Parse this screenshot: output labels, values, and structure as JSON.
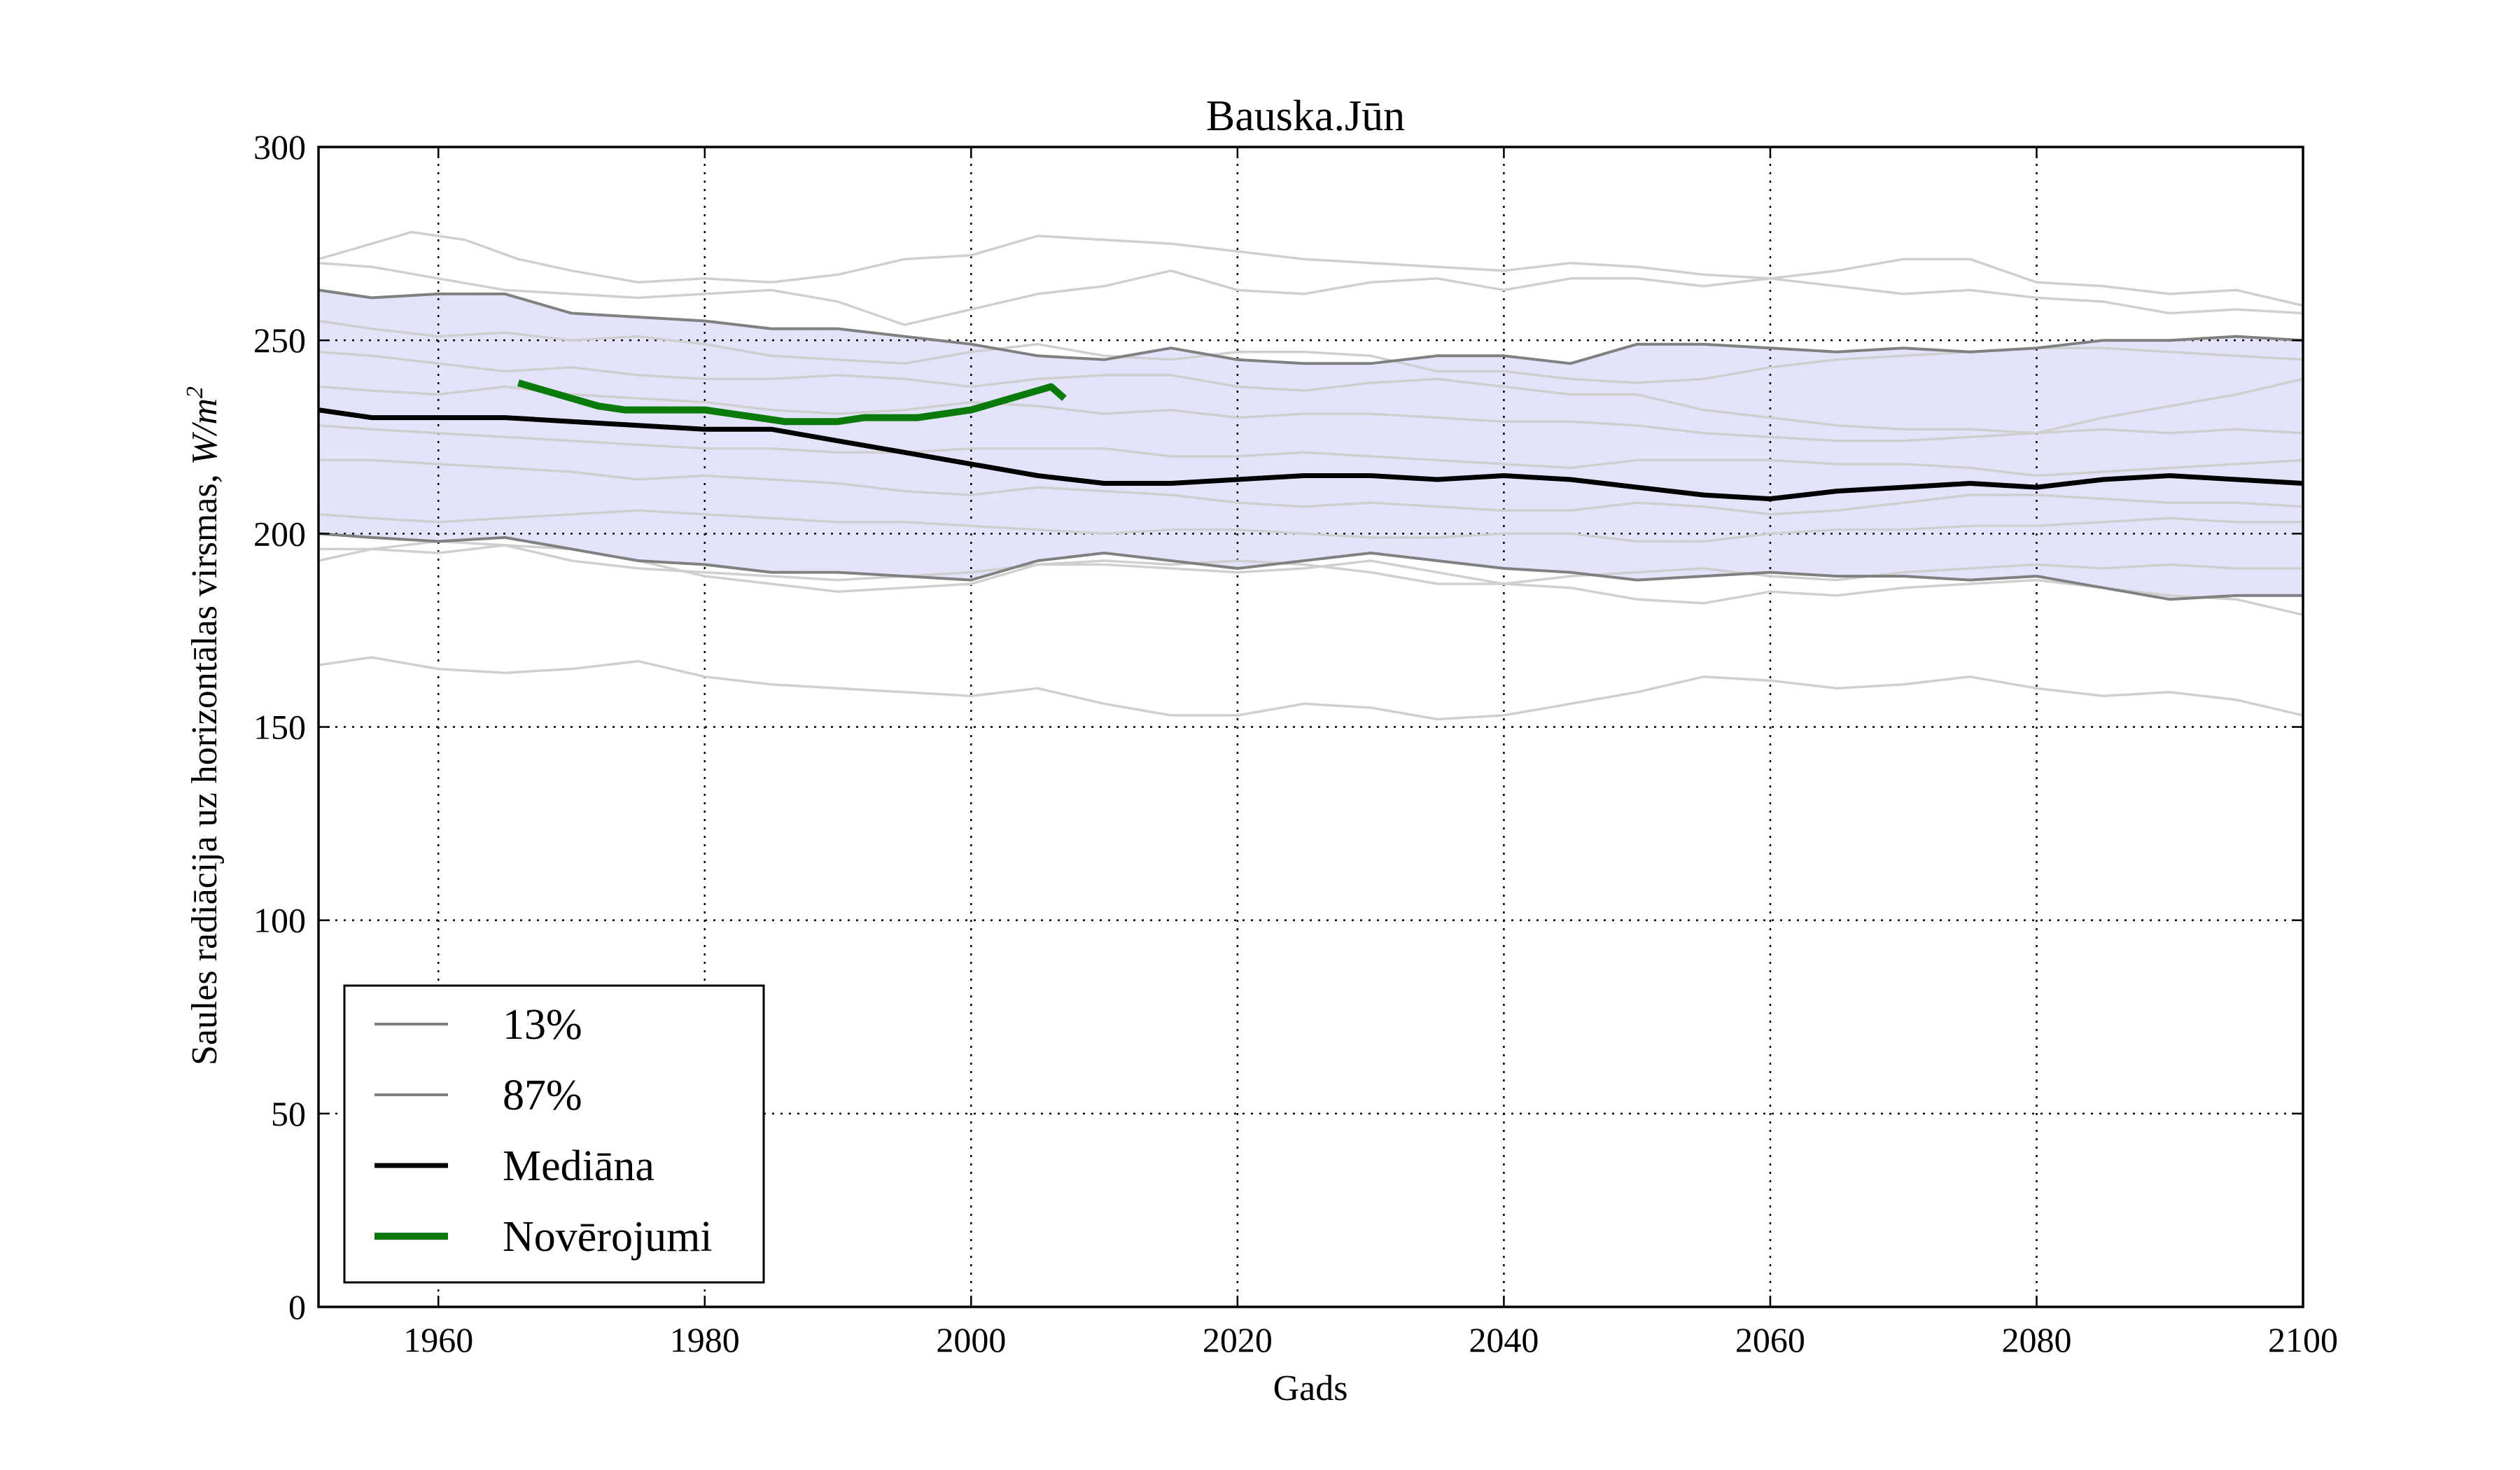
{
  "chart_data": {
    "type": "line",
    "title": "Bauska.Jūn",
    "xlabel": "Gads",
    "ylabel_text": "Saules radiācija uz horizontālas virsmas, ",
    "ylabel_unit": "W/m",
    "ylabel_unit_exp": "2",
    "xlim": [
      1951,
      2100
    ],
    "ylim": [
      0,
      300
    ],
    "xticks": [
      1960,
      1980,
      2000,
      2020,
      2040,
      2060,
      2080,
      2100
    ],
    "yticks": [
      0,
      50,
      100,
      150,
      200,
      250,
      300
    ],
    "grid": true,
    "legend_position": "lower-left",
    "band_color": "#e3e3fb",
    "series": [
      {
        "name": "13%",
        "color": "#808080",
        "x": [
          1951,
          1955,
          1960,
          1965,
          1970,
          1975,
          1980,
          1985,
          1990,
          1995,
          2000,
          2005,
          2010,
          2015,
          2020,
          2025,
          2030,
          2035,
          2040,
          2045,
          2050,
          2055,
          2060,
          2065,
          2070,
          2075,
          2080,
          2085,
          2090,
          2095,
          2100
        ],
        "values": [
          200,
          199,
          198,
          199,
          196,
          193,
          192,
          190,
          190,
          189,
          188,
          193,
          195,
          193,
          191,
          193,
          195,
          193,
          191,
          190,
          188,
          189,
          190,
          189,
          189,
          188,
          189,
          186,
          183,
          184,
          184
        ]
      },
      {
        "name": "87%",
        "color": "#808080",
        "x": [
          1951,
          1955,
          1960,
          1965,
          1970,
          1975,
          1980,
          1985,
          1990,
          1995,
          2000,
          2005,
          2010,
          2015,
          2020,
          2025,
          2030,
          2035,
          2040,
          2045,
          2050,
          2055,
          2060,
          2065,
          2070,
          2075,
          2080,
          2085,
          2090,
          2095,
          2100
        ],
        "values": [
          263,
          261,
          262,
          262,
          257,
          256,
          255,
          253,
          253,
          251,
          249,
          246,
          245,
          248,
          245,
          244,
          244,
          246,
          246,
          244,
          249,
          249,
          248,
          247,
          248,
          247,
          248,
          250,
          250,
          251,
          250
        ]
      },
      {
        "name": "Mediāna",
        "color": "#000000",
        "x": [
          1951,
          1955,
          1960,
          1965,
          1970,
          1975,
          1980,
          1985,
          1990,
          1995,
          2000,
          2005,
          2010,
          2015,
          2020,
          2025,
          2030,
          2035,
          2040,
          2045,
          2050,
          2055,
          2060,
          2065,
          2070,
          2075,
          2080,
          2085,
          2090,
          2095,
          2100
        ],
        "values": [
          232,
          230,
          230,
          230,
          229,
          228,
          227,
          227,
          224,
          221,
          218,
          215,
          213,
          213,
          214,
          215,
          215,
          214,
          215,
          214,
          212,
          210,
          209,
          211,
          212,
          213,
          212,
          214,
          215,
          214,
          213
        ]
      },
      {
        "name": "Novērojumi",
        "color": "#0a7a0a",
        "x": [
          1966,
          1968,
          1970,
          1972,
          1974,
          1976,
          1978,
          1980,
          1982,
          1984,
          1986,
          1988,
          1990,
          1992,
          1994,
          1996,
          1998,
          2000,
          2002,
          2004,
          2006,
          2007
        ],
        "values": [
          239,
          237,
          235,
          233,
          232,
          232,
          232,
          232,
          231,
          230,
          229,
          229,
          229,
          230,
          230,
          230,
          231,
          232,
          234,
          236,
          238,
          235
        ]
      }
    ],
    "ensemble_members": [
      {
        "x": [
          1951,
          1955,
          1958,
          1962,
          1966,
          1970,
          1975,
          1980,
          1985,
          1990,
          1995,
          2000,
          2005,
          2010,
          2015,
          2020,
          2025,
          2030,
          2035,
          2040,
          2045,
          2050,
          2055,
          2060,
          2065,
          2070,
          2075,
          2080,
          2085,
          2090,
          2095,
          2100
        ],
        "values": [
          271,
          275,
          278,
          276,
          271,
          268,
          265,
          266,
          265,
          267,
          271,
          272,
          277,
          276,
          275,
          273,
          271,
          270,
          269,
          268,
          270,
          269,
          267,
          266,
          268,
          271,
          271,
          265,
          264,
          262,
          263,
          259
        ]
      },
      {
        "x": [
          1951,
          1955,
          1960,
          1965,
          1970,
          1975,
          1980,
          1985,
          1990,
          1995,
          2000,
          2005,
          2010,
          2015,
          2020,
          2025,
          2030,
          2035,
          2040,
          2045,
          2050,
          2055,
          2060,
          2065,
          2070,
          2075,
          2080,
          2085,
          2090,
          2095,
          2100
        ],
        "values": [
          270,
          269,
          266,
          263,
          262,
          261,
          262,
          263,
          260,
          254,
          258,
          262,
          264,
          268,
          263,
          262,
          265,
          266,
          263,
          266,
          266,
          264,
          266,
          264,
          262,
          263,
          261,
          260,
          257,
          258,
          257
        ]
      },
      {
        "x": [
          1951,
          1955,
          1960,
          1965,
          1970,
          1975,
          1980,
          1985,
          1990,
          1995,
          2000,
          2005,
          2010,
          2015,
          2020,
          2025,
          2030,
          2035,
          2040,
          2045,
          2050,
          2055,
          2060,
          2065,
          2070,
          2075,
          2080,
          2085,
          2090,
          2095,
          2100
        ],
        "values": [
          255,
          253,
          251,
          252,
          250,
          251,
          249,
          246,
          245,
          244,
          247,
          249,
          246,
          245,
          247,
          247,
          246,
          242,
          242,
          240,
          239,
          240,
          243,
          245,
          246,
          247,
          248,
          248,
          247,
          246,
          245
        ]
      },
      {
        "x": [
          1951,
          1955,
          1960,
          1965,
          1970,
          1975,
          1980,
          1985,
          1990,
          1995,
          2000,
          2005,
          2010,
          2015,
          2020,
          2025,
          2030,
          2035,
          2040,
          2045,
          2050,
          2055,
          2060,
          2065,
          2070,
          2075,
          2080,
          2085,
          2090,
          2095,
          2100
        ],
        "values": [
          247,
          246,
          244,
          242,
          243,
          241,
          240,
          240,
          241,
          240,
          238,
          240,
          241,
          241,
          238,
          237,
          239,
          240,
          238,
          236,
          236,
          232,
          230,
          228,
          227,
          227,
          226,
          227,
          226,
          227,
          226
        ]
      },
      {
        "x": [
          1951,
          1955,
          1960,
          1965,
          1970,
          1975,
          1980,
          1985,
          1990,
          1995,
          2000,
          2005,
          2010,
          2015,
          2020,
          2025,
          2030,
          2035,
          2040,
          2045,
          2050,
          2055,
          2060,
          2065,
          2070,
          2075,
          2080,
          2085,
          2090,
          2095,
          2100
        ],
        "values": [
          238,
          237,
          236,
          238,
          236,
          235,
          234,
          232,
          231,
          232,
          234,
          233,
          231,
          232,
          230,
          231,
          231,
          230,
          229,
          229,
          228,
          226,
          225,
          224,
          224,
          225,
          226,
          230,
          233,
          236,
          240
        ]
      },
      {
        "x": [
          1951,
          1955,
          1960,
          1965,
          1970,
          1975,
          1980,
          1985,
          1990,
          1995,
          2000,
          2005,
          2010,
          2015,
          2020,
          2025,
          2030,
          2035,
          2040,
          2045,
          2050,
          2055,
          2060,
          2065,
          2070,
          2075,
          2080,
          2085,
          2090,
          2095,
          2100
        ],
        "values": [
          228,
          227,
          226,
          225,
          224,
          223,
          222,
          222,
          221,
          221,
          222,
          222,
          222,
          220,
          220,
          221,
          220,
          219,
          218,
          217,
          219,
          219,
          219,
          218,
          218,
          217,
          215,
          216,
          217,
          218,
          219
        ]
      },
      {
        "x": [
          1951,
          1955,
          1960,
          1965,
          1970,
          1975,
          1980,
          1985,
          1990,
          1995,
          2000,
          2005,
          2010,
          2015,
          2020,
          2025,
          2030,
          2035,
          2040,
          2045,
          2050,
          2055,
          2060,
          2065,
          2070,
          2075,
          2080,
          2085,
          2090,
          2095,
          2100
        ],
        "values": [
          219,
          219,
          218,
          217,
          216,
          214,
          215,
          214,
          213,
          211,
          210,
          212,
          211,
          210,
          208,
          207,
          208,
          207,
          206,
          206,
          208,
          207,
          205,
          206,
          208,
          210,
          210,
          209,
          208,
          208,
          207
        ]
      },
      {
        "x": [
          1951,
          1955,
          1960,
          1965,
          1970,
          1975,
          1980,
          1985,
          1990,
          1995,
          2000,
          2005,
          2010,
          2015,
          2020,
          2025,
          2030,
          2035,
          2040,
          2045,
          2050,
          2055,
          2060,
          2065,
          2070,
          2075,
          2080,
          2085,
          2090,
          2095,
          2100
        ],
        "values": [
          205,
          204,
          203,
          204,
          205,
          206,
          205,
          204,
          203,
          203,
          202,
          201,
          200,
          201,
          201,
          200,
          199,
          199,
          200,
          200,
          198,
          198,
          200,
          201,
          201,
          202,
          202,
          203,
          204,
          203,
          203
        ]
      },
      {
        "x": [
          1951,
          1955,
          1960,
          1965,
          1970,
          1975,
          1980,
          1985,
          1990,
          1995,
          2000,
          2005,
          2010,
          2015,
          2020,
          2025,
          2030,
          2035,
          2040,
          2045,
          2050,
          2055,
          2060,
          2065,
          2070,
          2075,
          2080,
          2085,
          2090,
          2095,
          2100
        ],
        "values": [
          196,
          196,
          195,
          197,
          196,
          193,
          189,
          187,
          185,
          186,
          187,
          192,
          193,
          192,
          193,
          192,
          190,
          187,
          187,
          189,
          190,
          191,
          189,
          188,
          190,
          191,
          192,
          191,
          192,
          191,
          191
        ]
      },
      {
        "x": [
          1951,
          1955,
          1960,
          1965,
          1970,
          1975,
          1980,
          1985,
          1990,
          1995,
          2000,
          2005,
          2010,
          2015,
          2020,
          2025,
          2030,
          2035,
          2040,
          2045,
          2050,
          2055,
          2060,
          2065,
          2070,
          2075,
          2080,
          2085,
          2090,
          2095,
          2100
        ],
        "values": [
          193,
          196,
          198,
          197,
          193,
          191,
          190,
          189,
          188,
          189,
          190,
          192,
          192,
          191,
          190,
          191,
          193,
          190,
          187,
          186,
          183,
          182,
          185,
          184,
          186,
          187,
          188,
          186,
          184,
          183,
          179
        ]
      },
      {
        "x": [
          1951,
          1955,
          1960,
          1965,
          1970,
          1975,
          1980,
          1985,
          1990,
          1995,
          2000,
          2005,
          2010,
          2015,
          2020,
          2025,
          2030,
          2035,
          2040,
          2045,
          2050,
          2055,
          2060,
          2065,
          2070,
          2075,
          2080,
          2085,
          2090,
          2095,
          2100
        ],
        "values": [
          166,
          168,
          165,
          164,
          165,
          167,
          163,
          161,
          160,
          159,
          158,
          160,
          156,
          153,
          153,
          156,
          155,
          152,
          153,
          156,
          159,
          163,
          162,
          160,
          161,
          163,
          160,
          158,
          159,
          157,
          153
        ]
      }
    ]
  }
}
